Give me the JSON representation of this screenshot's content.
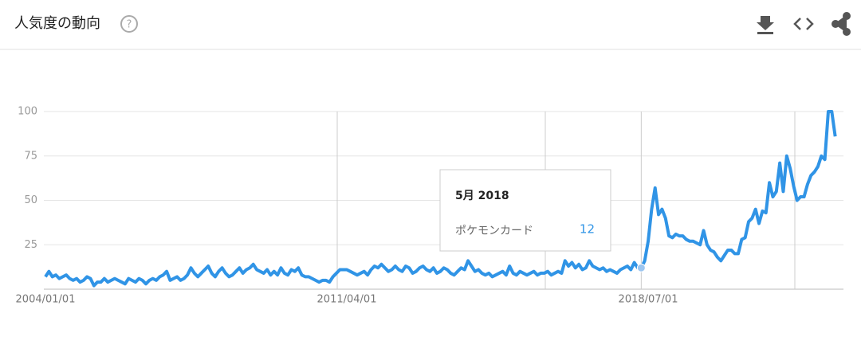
{
  "chart_data": {
    "type": "line",
    "title": "人気度の動向",
    "x": [
      "2004/01/01",
      "2004/02/01",
      "2004/03/01",
      "2004/04/01",
      "2004/05/01",
      "2004/06/01",
      "2004/07/01",
      "2004/08/01",
      "2004/09/01",
      "2004/10/01",
      "2004/11/01",
      "2004/12/01",
      "2005/01/01",
      "2005/02/01",
      "2005/03/01",
      "2005/04/01",
      "2005/05/01",
      "2005/06/01",
      "2005/07/01",
      "2005/08/01",
      "2005/09/01",
      "2005/10/01",
      "2005/11/01",
      "2005/12/01",
      "2006/01/01",
      "2006/02/01",
      "2006/03/01",
      "2006/04/01",
      "2006/05/01",
      "2006/06/01",
      "2006/07/01",
      "2006/08/01",
      "2006/09/01",
      "2006/10/01",
      "2006/11/01",
      "2006/12/01",
      "2007/01/01",
      "2007/02/01",
      "2007/03/01",
      "2007/04/01",
      "2007/05/01",
      "2007/06/01",
      "2007/07/01",
      "2007/08/01",
      "2007/09/01",
      "2007/10/01",
      "2007/11/01",
      "2007/12/01",
      "2008/01/01",
      "2008/02/01",
      "2008/03/01",
      "2008/04/01",
      "2008/05/01",
      "2008/06/01",
      "2008/07/01",
      "2008/08/01",
      "2008/09/01",
      "2008/10/01",
      "2008/11/01",
      "2008/12/01",
      "2009/01/01",
      "2009/02/01",
      "2009/03/01",
      "2009/04/01",
      "2009/05/01",
      "2009/06/01",
      "2009/07/01",
      "2009/08/01",
      "2009/09/01",
      "2009/10/01",
      "2009/11/01",
      "2009/12/01",
      "2010/01/01",
      "2010/02/01",
      "2010/03/01",
      "2010/04/01",
      "2010/05/01",
      "2010/06/01",
      "2010/07/01",
      "2010/08/01",
      "2010/09/01",
      "2010/10/01",
      "2010/11/01",
      "2010/12/01",
      "2011/01/01",
      "2011/02/01",
      "2011/03/01",
      "2011/04/01",
      "2011/05/01",
      "2011/06/01",
      "2011/07/01",
      "2011/08/01",
      "2011/09/01",
      "2011/10/01",
      "2011/11/01",
      "2011/12/01",
      "2012/01/01",
      "2012/02/01",
      "2012/03/01",
      "2012/04/01",
      "2012/05/01",
      "2012/06/01",
      "2012/07/01",
      "2012/08/01",
      "2012/09/01",
      "2012/10/01",
      "2012/11/01",
      "2012/12/01",
      "2013/01/01",
      "2013/02/01",
      "2013/03/01",
      "2013/04/01",
      "2013/05/01",
      "2013/06/01",
      "2013/07/01",
      "2013/08/01",
      "2013/09/01",
      "2013/10/01",
      "2013/11/01",
      "2013/12/01",
      "2014/01/01",
      "2014/02/01",
      "2014/03/01",
      "2014/04/01",
      "2014/05/01",
      "2014/06/01",
      "2014/07/01",
      "2014/08/01",
      "2014/09/01",
      "2014/10/01",
      "2014/11/01",
      "2014/12/01",
      "2015/01/01",
      "2015/02/01",
      "2015/03/01",
      "2015/04/01",
      "2015/05/01",
      "2015/06/01",
      "2015/07/01",
      "2015/08/01",
      "2015/09/01",
      "2015/10/01",
      "2015/11/01",
      "2015/12/01",
      "2016/01/01",
      "2016/02/01",
      "2016/03/01",
      "2016/04/01",
      "2016/05/01",
      "2016/06/01",
      "2016/07/01",
      "2016/08/01",
      "2016/09/01",
      "2016/10/01",
      "2016/11/01",
      "2016/12/01",
      "2017/01/01",
      "2017/02/01",
      "2017/03/01",
      "2017/04/01",
      "2017/05/01",
      "2017/06/01",
      "2017/07/01",
      "2017/08/01",
      "2017/09/01",
      "2017/10/01",
      "2017/11/01",
      "2017/12/01",
      "2018/01/01",
      "2018/02/01",
      "2018/03/01",
      "2018/04/01",
      "2018/05/01",
      "2018/06/01",
      "2018/07/01",
      "2018/08/01",
      "2018/09/01",
      "2018/10/01",
      "2018/11/01",
      "2018/12/01",
      "2019/01/01",
      "2019/02/01",
      "2019/03/01",
      "2019/04/01",
      "2019/05/01",
      "2019/06/01",
      "2019/07/01",
      "2019/08/01",
      "2019/09/01",
      "2019/10/01",
      "2019/11/01",
      "2019/12/01",
      "2020/01/01",
      "2020/02/01",
      "2020/03/01",
      "2020/04/01",
      "2020/05/01",
      "2020/06/01",
      "2020/07/01",
      "2020/08/01",
      "2020/09/01",
      "2020/10/01",
      "2020/11/01",
      "2020/12/01",
      "2021/01/01",
      "2021/02/01",
      "2021/03/01",
      "2021/04/01",
      "2021/05/01",
      "2021/06/01",
      "2021/07/01",
      "2021/08/01",
      "2021/09/01",
      "2021/10/01",
      "2021/11/01",
      "2021/12/01",
      "2022/01/01",
      "2022/02/01",
      "2022/03/01",
      "2022/04/01",
      "2022/05/01",
      "2022/06/01",
      "2022/07/01",
      "2022/08/01",
      "2022/09/01",
      "2022/10/01",
      "2022/11/01",
      "2022/12/01",
      "2023/01/01"
    ],
    "series": [
      {
        "name": "ポケモンカード",
        "color": "#3094e6",
        "values": [
          7,
          10,
          7,
          8,
          6,
          7,
          8,
          6,
          5,
          6,
          4,
          5,
          7,
          6,
          2,
          4,
          4,
          6,
          4,
          5,
          6,
          5,
          4,
          3,
          6,
          5,
          4,
          6,
          5,
          3,
          5,
          6,
          5,
          7,
          8,
          10,
          5,
          6,
          7,
          5,
          6,
          8,
          12,
          9,
          7,
          9,
          11,
          13,
          9,
          7,
          10,
          12,
          9,
          7,
          8,
          10,
          12,
          9,
          11,
          12,
          14,
          11,
          10,
          9,
          11,
          8,
          10,
          8,
          12,
          9,
          8,
          11,
          10,
          12,
          8,
          7,
          7,
          6,
          5,
          4,
          5,
          5,
          4,
          7,
          9,
          11,
          11,
          11,
          10,
          9,
          8,
          9,
          10,
          8,
          11,
          13,
          12,
          14,
          12,
          10,
          11,
          13,
          11,
          10,
          13,
          12,
          9,
          10,
          12,
          13,
          11,
          10,
          12,
          9,
          10,
          12,
          11,
          9,
          8,
          10,
          12,
          11,
          16,
          13,
          10,
          11,
          9,
          8,
          9,
          7,
          8,
          9,
          10,
          8,
          13,
          9,
          8,
          10,
          9,
          8,
          9,
          10,
          8,
          9,
          9,
          10,
          8,
          9,
          10,
          9,
          16,
          13,
          15,
          12,
          14,
          11,
          12,
          16,
          13,
          12,
          11,
          12,
          10,
          11,
          10,
          9,
          11,
          12,
          13,
          11,
          15,
          12,
          12,
          16,
          27,
          45,
          57,
          42,
          45,
          40,
          30,
          29,
          31,
          30,
          30,
          28,
          27,
          27,
          26,
          25,
          33,
          25,
          22,
          21,
          18,
          16,
          19,
          22,
          22,
          20,
          20,
          28,
          29,
          38,
          40,
          45,
          37,
          44,
          43,
          60,
          52,
          55,
          71,
          55,
          75,
          68,
          58,
          50,
          52,
          52,
          59,
          64,
          66,
          69,
          75,
          73,
          100,
          100,
          86
        ]
      }
    ],
    "ylim": [
      0,
      100
    ],
    "yticks": [
      25,
      50,
      75,
      100
    ],
    "xticks": [
      "2004/01/01",
      "2011/04/01",
      "2018/07/01"
    ],
    "grid": true,
    "tooltip": {
      "title": "5月 2018",
      "index": 172
    }
  }
}
